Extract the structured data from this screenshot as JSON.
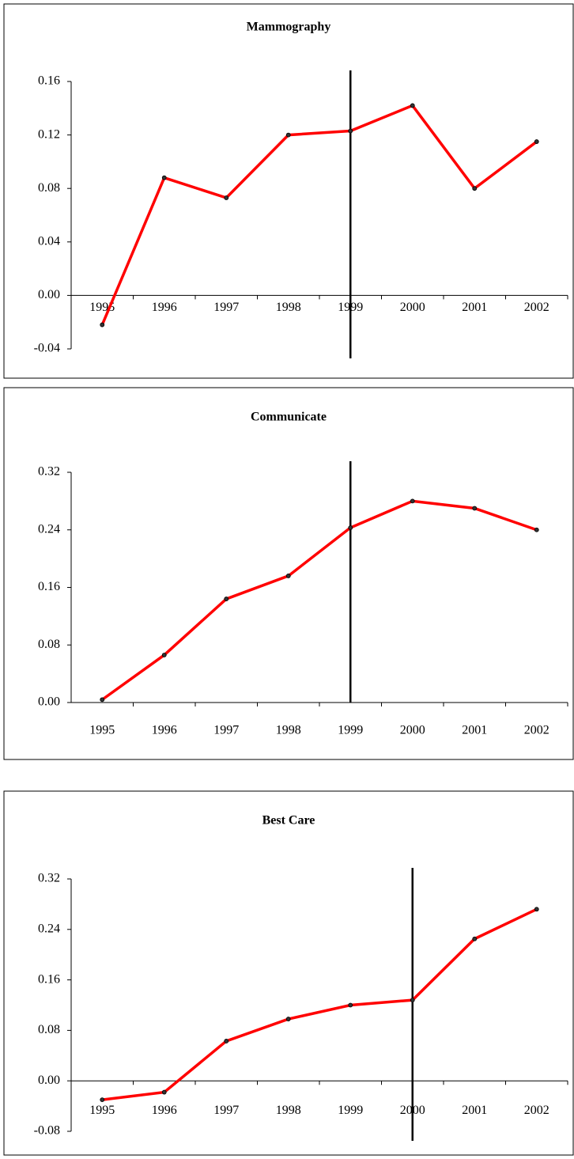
{
  "chart_data": [
    {
      "type": "line",
      "title": "Mammography",
      "categories": [
        "1995",
        "1996",
        "1997",
        "1998",
        "1999",
        "2000",
        "2001",
        "2002"
      ],
      "values": [
        -0.022,
        0.088,
        0.073,
        0.12,
        0.123,
        0.142,
        0.08,
        0.115
      ],
      "color": "#ff0000",
      "vline_category": "1999",
      "ylim": [
        -0.04,
        0.16
      ],
      "yticks": [
        -0.04,
        {
          "value": 0,
          "label": "0.00"
        },
        0.04,
        0.08,
        0.12,
        0.16
      ]
    },
    {
      "type": "line",
      "title": "Communicate",
      "categories": [
        "1995",
        "1996",
        "1997",
        "1998",
        "1999",
        "2000",
        "2001",
        "2002"
      ],
      "values": [
        0.004,
        0.066,
        0.144,
        0.176,
        0.243,
        0.28,
        0.27,
        0.24
      ],
      "color": "#ff0000",
      "vline_category": "1999",
      "ylim": [
        0,
        0.32
      ],
      "yticks": [
        {
          "value": 0,
          "label": "0.00"
        },
        0.08,
        0.16,
        0.24,
        0.32
      ]
    },
    {
      "type": "line",
      "title": "Best Care",
      "categories": [
        "1995",
        "1996",
        "1997",
        "1998",
        "1999",
        "2000",
        "2001",
        "2002"
      ],
      "values": [
        -0.03,
        -0.018,
        0.063,
        0.098,
        0.12,
        0.128,
        0.225,
        0.272
      ],
      "color": "#ff0000",
      "vline_category": "2000",
      "ylim": [
        -0.08,
        0.32
      ],
      "yticks": [
        -0.08,
        {
          "value": 0,
          "label": "0.00"
        },
        0.08,
        0.16,
        0.24,
        0.32
      ]
    }
  ]
}
